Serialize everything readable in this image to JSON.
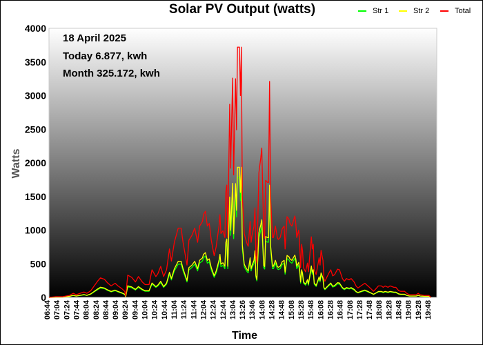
{
  "chart_data": {
    "type": "line",
    "title": "Solar PV Output (watts)",
    "xlabel": "Time",
    "ylabel": "Watts",
    "ylim": [
      0,
      4000
    ],
    "yticks": [
      0,
      500,
      1000,
      1500,
      2000,
      2500,
      3000,
      3500,
      4000
    ],
    "xtick_labels": [
      "06:44",
      "07:04",
      "07:24",
      "07:44",
      "08:04",
      "08:24",
      "08:44",
      "09:04",
      "09:24",
      "09:44",
      "10:04",
      "10:24",
      "10:44",
      "11:04",
      "11:24",
      "11:44",
      "12:04",
      "12:24",
      "12:44",
      "13:04",
      "13:26",
      "13:46",
      "14:08",
      "14:28",
      "14:48",
      "15:08",
      "15:28",
      "15:48",
      "16:08",
      "16:28",
      "16:48",
      "17:08",
      "17:28",
      "17:48",
      "18:08",
      "18:28",
      "18:48",
      "19:08",
      "19:28",
      "19:48"
    ],
    "legend_position": "top-right",
    "grid": false,
    "background": "vertical gradient white to black",
    "annotations": [
      "18 April 2025",
      "Today 6.877, kwh",
      "Month 325.172, kwh"
    ],
    "x": [
      "06:44",
      "06:58",
      "07:12",
      "07:26",
      "07:34",
      "07:40",
      "07:48",
      "07:56",
      "08:02",
      "08:10",
      "08:16",
      "08:24",
      "08:30",
      "08:38",
      "08:44",
      "08:52",
      "09:00",
      "09:06",
      "09:14",
      "09:20",
      "09:22",
      "09:26",
      "09:34",
      "09:42",
      "09:48",
      "09:56",
      "10:02",
      "10:10",
      "10:16",
      "10:24",
      "10:28",
      "10:34",
      "10:40",
      "10:46",
      "10:52",
      "10:56",
      "11:02",
      "11:10",
      "11:16",
      "11:20",
      "11:28",
      "11:32",
      "11:38",
      "11:44",
      "11:50",
      "11:54",
      "12:00",
      "12:02",
      "12:06",
      "12:10",
      "12:14",
      "12:18",
      "12:24",
      "12:28",
      "12:34",
      "12:36",
      "12:38",
      "12:42",
      "12:46",
      "12:48",
      "12:50",
      "12:52",
      "12:56",
      "12:58",
      "13:02",
      "13:04",
      "13:08",
      "13:10",
      "13:12",
      "13:16",
      "13:18",
      "13:20",
      "13:22",
      "13:26",
      "13:28",
      "13:32",
      "13:34",
      "13:38",
      "13:40",
      "13:42",
      "13:46",
      "13:48",
      "13:50",
      "13:52",
      "13:56",
      "14:00",
      "14:02",
      "14:06",
      "14:08",
      "14:10",
      "14:14",
      "14:16",
      "14:18",
      "14:20",
      "14:24",
      "14:26",
      "14:30",
      "14:34",
      "14:36",
      "14:40",
      "14:44",
      "14:48",
      "14:50",
      "14:54",
      "14:58",
      "15:00",
      "15:04",
      "15:10",
      "15:12",
      "15:14",
      "15:18",
      "15:20",
      "15:22",
      "15:24",
      "15:26",
      "15:28",
      "15:32",
      "15:36",
      "15:38",
      "15:44",
      "15:46",
      "15:48",
      "15:50",
      "15:54",
      "15:58",
      "16:00",
      "16:02",
      "16:04",
      "16:08",
      "16:10",
      "16:12",
      "16:20",
      "16:24",
      "16:28",
      "16:32",
      "16:38",
      "16:42",
      "16:48",
      "16:52",
      "16:56",
      "17:02",
      "17:06",
      "17:12",
      "17:16",
      "17:20",
      "17:26",
      "17:34",
      "17:42",
      "17:48",
      "17:52",
      "17:56",
      "18:02",
      "18:08",
      "18:12",
      "18:16",
      "18:22",
      "18:26",
      "18:34",
      "18:38",
      "18:44",
      "18:48",
      "18:56",
      "19:00",
      "19:06",
      "19:12",
      "19:20",
      "19:24",
      "19:28",
      "19:36",
      "19:46",
      "19:50"
    ],
    "series": [
      {
        "name": "Str 1",
        "color": "#00ff00",
        "values": [
          0,
          5,
          5,
          14,
          29,
          19,
          29,
          38,
          29,
          48,
          77,
          115,
          139,
          130,
          106,
          82,
          101,
          82,
          62,
          43,
          10,
          158,
          144,
          110,
          149,
          110,
          91,
          91,
          197,
          149,
          168,
          221,
          149,
          197,
          346,
          259,
          394,
          494,
          494,
          394,
          230,
          408,
          442,
          494,
          394,
          509,
          542,
          590,
          614,
          509,
          528,
          408,
          298,
          360,
          509,
          590,
          456,
          475,
          427,
          754,
          802,
          427,
          1378,
          922,
          1565,
          874,
          1560,
          1195,
          1786,
          1786,
          1440,
          1786,
          720,
          456,
          427,
          379,
          365,
          542,
          394,
          442,
          509,
          638,
          298,
          245,
          888,
          998,
          1066,
          442,
          422,
          835,
          821,
          821,
          1541,
          720,
          427,
          427,
          509,
          427,
          413,
          427,
          490,
          509,
          346,
          576,
          557,
          528,
          509,
          581,
          528,
          427,
          480,
          379,
          211,
          379,
          331,
          211,
          182,
          245,
          182,
          432,
          346,
          379,
          197,
          163,
          245,
          283,
          230,
          336,
          264,
          134,
          115,
          173,
          197,
          154,
          163,
          202,
          197,
          134,
          115,
          134,
          125,
          134,
          110,
          82,
          67,
          82,
          101,
          77,
          58,
          43,
          58,
          82,
          82,
          72,
          82,
          72,
          82,
          72,
          72,
          48,
          43,
          43,
          29,
          19,
          19,
          19,
          29,
          19,
          14,
          14,
          0
        ]
      },
      {
        "name": "Str 2",
        "color": "#ffff00",
        "values": [
          0,
          5,
          5,
          16,
          31,
          21,
          31,
          42,
          31,
          52,
          83,
          125,
          151,
          140,
          114,
          88,
          109,
          88,
          68,
          47,
          10,
          172,
          156,
          120,
          161,
          120,
          99,
          99,
          213,
          161,
          182,
          239,
          161,
          213,
          374,
          281,
          426,
          536,
          536,
          426,
          250,
          442,
          478,
          536,
          426,
          551,
          588,
          640,
          666,
          551,
          572,
          442,
          322,
          390,
          551,
          640,
          494,
          515,
          463,
          816,
          868,
          463,
          1492,
          998,
          1695,
          946,
          1690,
          1295,
          1934,
          1934,
          1560,
          1934,
          780,
          494,
          463,
          411,
          395,
          588,
          426,
          478,
          551,
          692,
          322,
          265,
          962,
          1082,
          1154,
          478,
          458,
          905,
          889,
          889,
          1669,
          780,
          463,
          463,
          551,
          463,
          447,
          463,
          530,
          551,
          374,
          624,
          603,
          572,
          551,
          629,
          572,
          463,
          520,
          411,
          229,
          411,
          359,
          229,
          198,
          265,
          198,
          468,
          374,
          411,
          213,
          177,
          265,
          307,
          250,
          364,
          286,
          146,
          125,
          187,
          213,
          166,
          177,
          218,
          213,
          146,
          125,
          146,
          135,
          146,
          120,
          88,
          73,
          88,
          109,
          83,
          62,
          47,
          62,
          88,
          88,
          78,
          88,
          78,
          88,
          78,
          78,
          52,
          47,
          47,
          31,
          21,
          21,
          21,
          31,
          21,
          16,
          16,
          0
        ]
      },
      {
        "name": "Total",
        "color": "#ff0000",
        "values": [
          0,
          10,
          10,
          30,
          60,
          40,
          60,
          80,
          60,
          100,
          160,
          240,
          290,
          270,
          220,
          170,
          210,
          170,
          130,
          90,
          20,
          330,
          300,
          230,
          310,
          230,
          190,
          190,
          410,
          310,
          350,
          460,
          310,
          410,
          720,
          540,
          820,
          1030,
          1030,
          820,
          480,
          850,
          920,
          1030,
          820,
          1060,
          1130,
          1230,
          1280,
          1060,
          1100,
          850,
          620,
          750,
          1060,
          1230,
          950,
          990,
          890,
          1570,
          1670,
          890,
          2870,
          1920,
          3260,
          1820,
          3250,
          2490,
          3720,
          3720,
          3000,
          3720,
          1500,
          950,
          890,
          790,
          760,
          1130,
          820,
          920,
          1060,
          1330,
          620,
          510,
          1850,
          2080,
          2220,
          920,
          880,
          1740,
          1710,
          1710,
          3210,
          1500,
          890,
          890,
          1060,
          890,
          860,
          890,
          1020,
          1060,
          720,
          1200,
          1160,
          1100,
          1060,
          1210,
          1100,
          890,
          1000,
          790,
          440,
          790,
          690,
          440,
          380,
          510,
          380,
          900,
          720,
          790,
          410,
          340,
          510,
          590,
          480,
          700,
          550,
          280,
          240,
          360,
          410,
          320,
          340,
          420,
          410,
          280,
          240,
          280,
          260,
          280,
          230,
          170,
          140,
          170,
          210,
          160,
          120,
          90,
          120,
          170,
          170,
          150,
          170,
          150,
          170,
          150,
          150,
          100,
          90,
          90,
          60,
          40,
          40,
          40,
          60,
          40,
          30,
          30,
          0
        ]
      }
    ]
  }
}
